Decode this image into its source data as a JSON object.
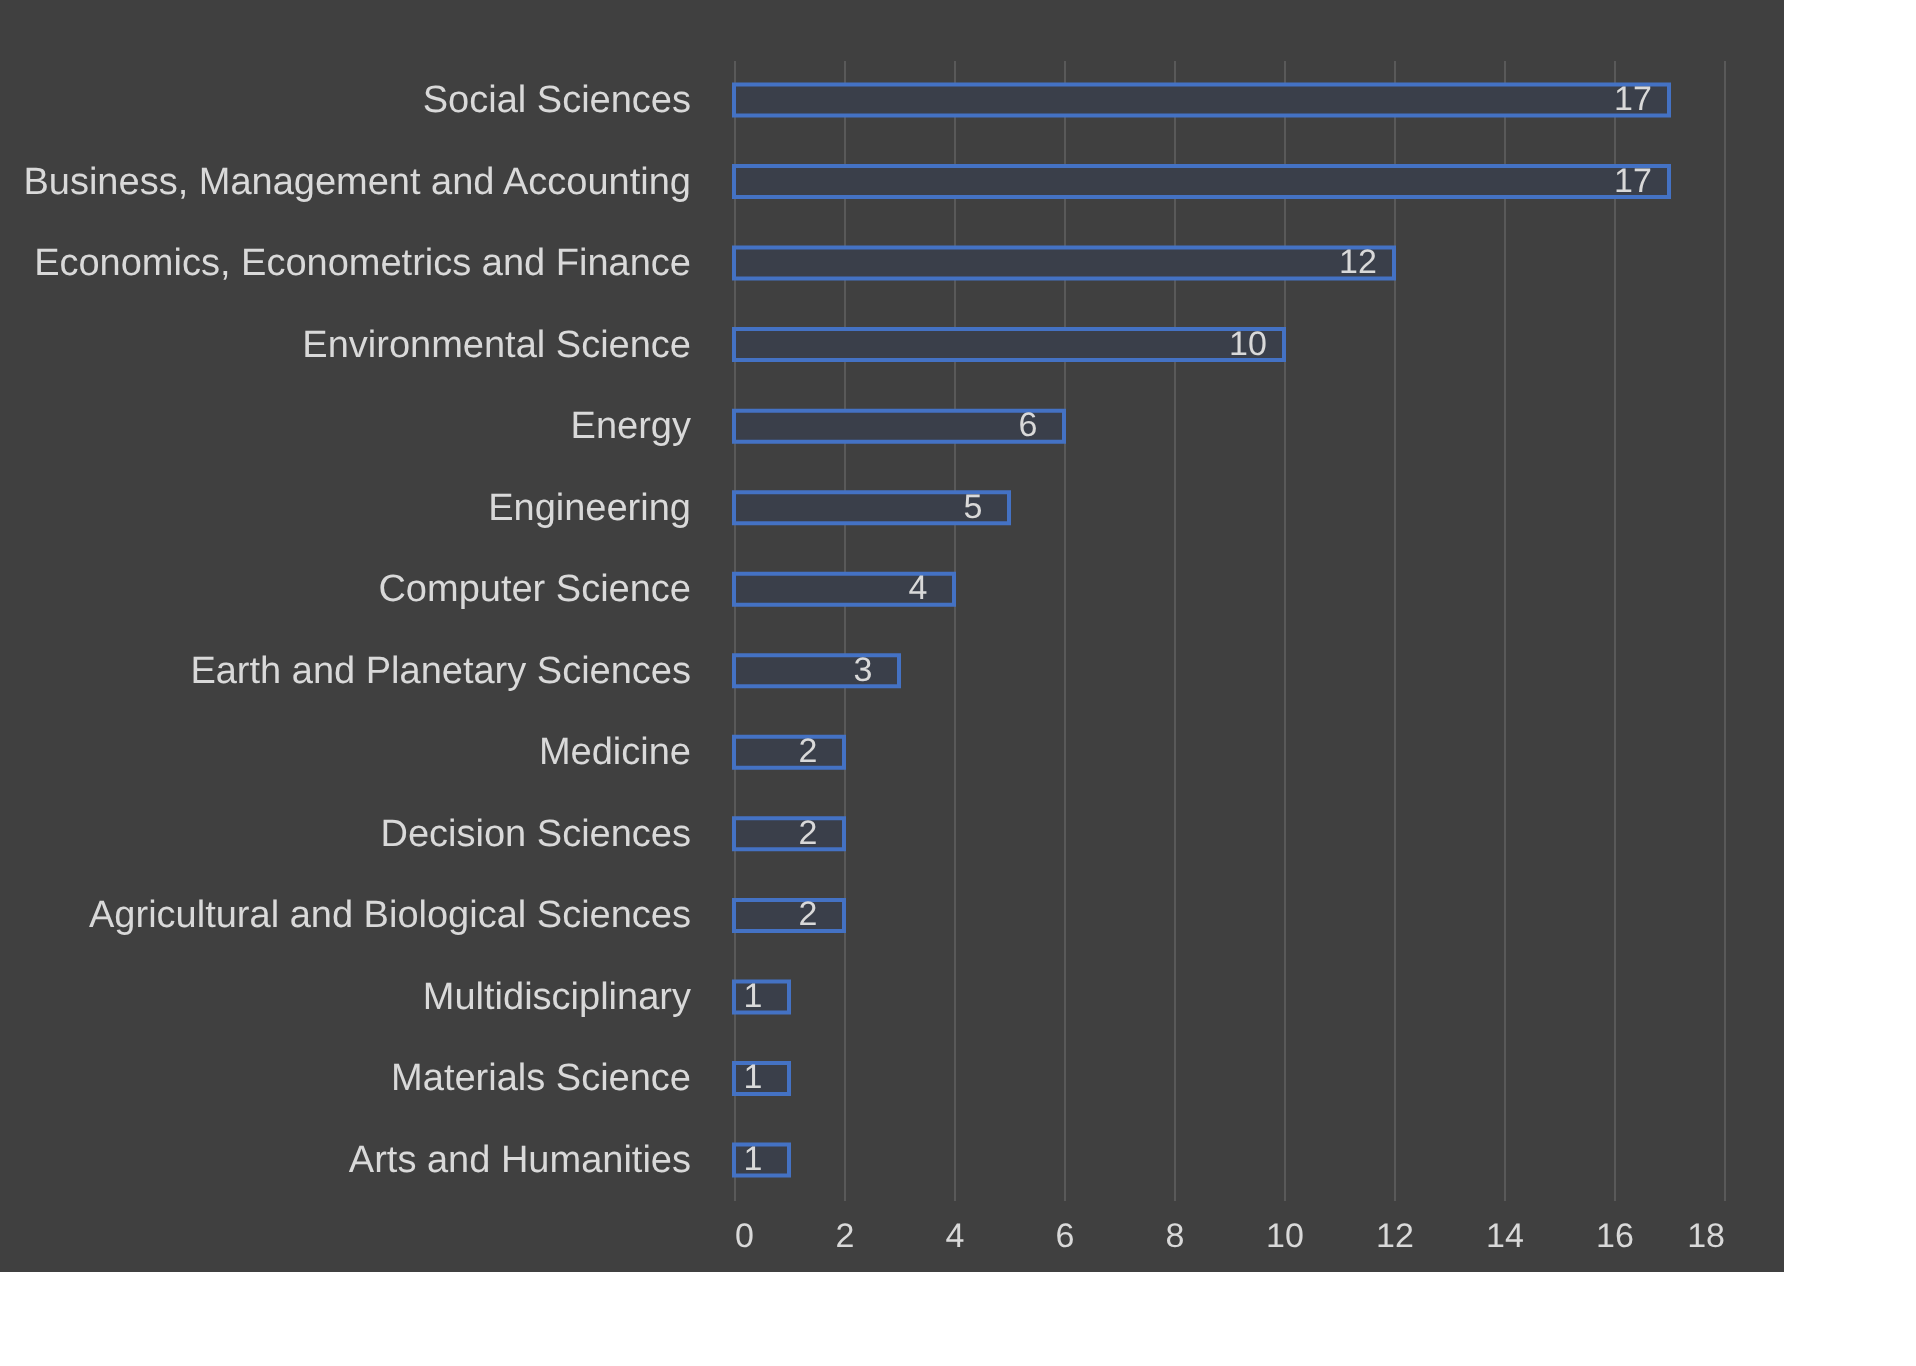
{
  "chart_data": {
    "type": "bar",
    "orientation": "horizontal",
    "categories": [
      "Social Sciences",
      "Business, Management and Accounting",
      "Economics, Econometrics and Finance",
      "Environmental Science",
      "Energy",
      "Engineering",
      "Computer Science",
      "Earth and Planetary Sciences",
      "Medicine",
      "Decision Sciences",
      "Agricultural and Biological Sciences",
      "Multidisciplinary",
      "Materials Science",
      "Arts and Humanities"
    ],
    "values": [
      17,
      17,
      12,
      10,
      6,
      5,
      4,
      3,
      2,
      2,
      2,
      1,
      1,
      1
    ],
    "color": "#4472c4",
    "xlim": [
      0,
      18
    ],
    "xticks": [
      0,
      2,
      4,
      6,
      8,
      10,
      12,
      14,
      16,
      18
    ],
    "grid": "x",
    "data_labels": true
  }
}
